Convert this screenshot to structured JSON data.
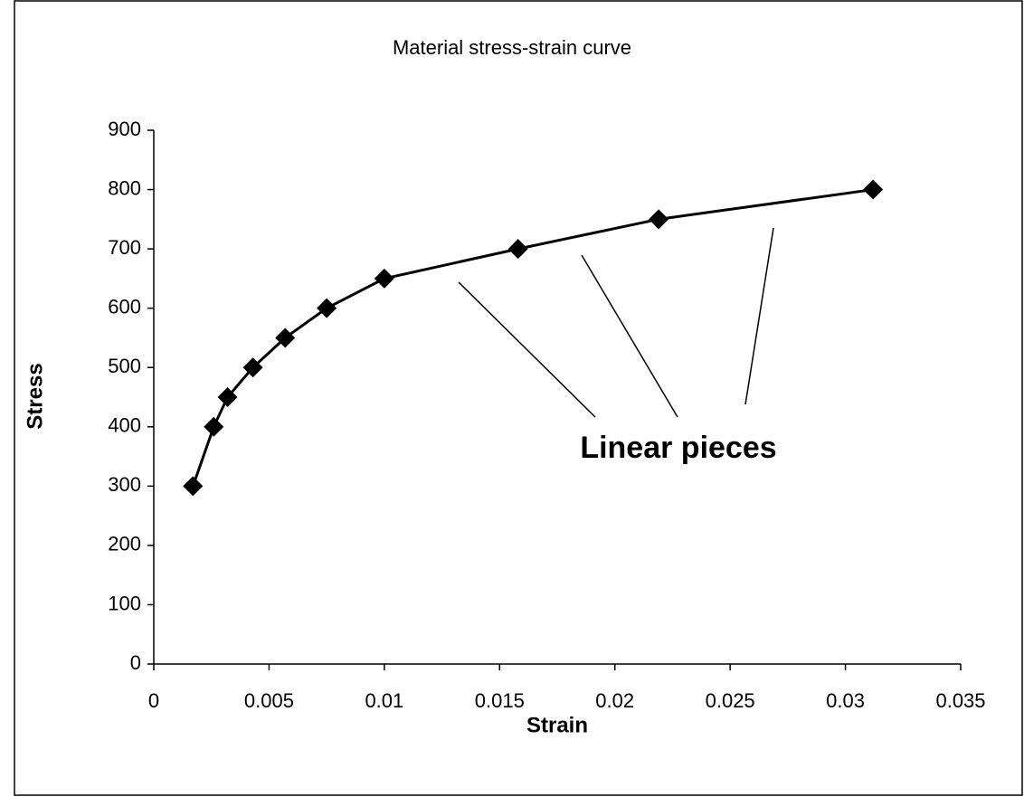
{
  "chart_data": {
    "type": "line",
    "title": "Material stress-strain curve",
    "x_label": "Strain",
    "y_label": "Stress",
    "annotation": "Linear pieces",
    "x": [
      0.0017,
      0.0026,
      0.0032,
      0.0043,
      0.0057,
      0.0075,
      0.01,
      0.0158,
      0.0219,
      0.0312
    ],
    "series": [
      {
        "color": "#000000",
        "values": [
          300,
          400,
          450,
          500,
          550,
          600,
          650,
          700,
          750,
          800
        ]
      }
    ],
    "xlim": [
      0,
      0.035
    ],
    "xticks": [
      0,
      0.005,
      0.01,
      0.015,
      0.02,
      0.025,
      0.03,
      0.035
    ],
    "ylim": [
      0,
      900
    ],
    "yticks": [
      0,
      100,
      200,
      300,
      400,
      500,
      600,
      700,
      800,
      900
    ],
    "grid": false
  }
}
